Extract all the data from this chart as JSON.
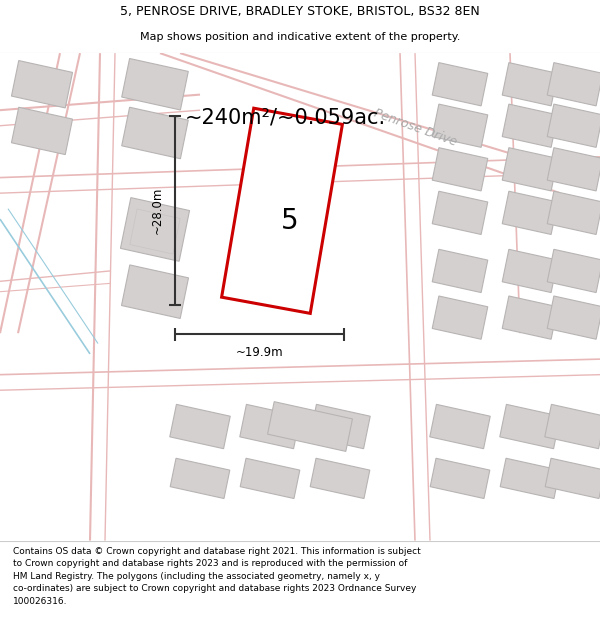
{
  "title_line1": "5, PENROSE DRIVE, BRADLEY STOKE, BRISTOL, BS32 8EN",
  "title_line2": "Map shows position and indicative extent of the property.",
  "area_text": "~240m²/~0.059ac.",
  "property_number": "5",
  "dim_width": "~19.9m",
  "dim_height": "~28.0m",
  "street_label": "Penrose Drive",
  "footer_text": "Contains OS data © Crown copyright and database right 2021. This information is subject to Crown copyright and database rights 2023 and is reproduced with the permission of HM Land Registry. The polygons (including the associated geometry, namely x, y co-ordinates) are subject to Crown copyright and database rights 2023 Ordnance Survey 100026316.",
  "bg_color": "#f7f5f5",
  "map_bg": "#f0eeee",
  "road_color": "#e8b8b8",
  "building_color": "#d4d0d0",
  "building_edge": "#b8b4b4",
  "highlight_color": "#cc0000",
  "highlight_fill": "#ffffff",
  "dim_color": "#333333",
  "text_color": "#000000",
  "street_label_color": "#aaaaaa",
  "white": "#ffffff",
  "footer_area_bg": "#ffffff",
  "cyan_line": "#99ccdd"
}
